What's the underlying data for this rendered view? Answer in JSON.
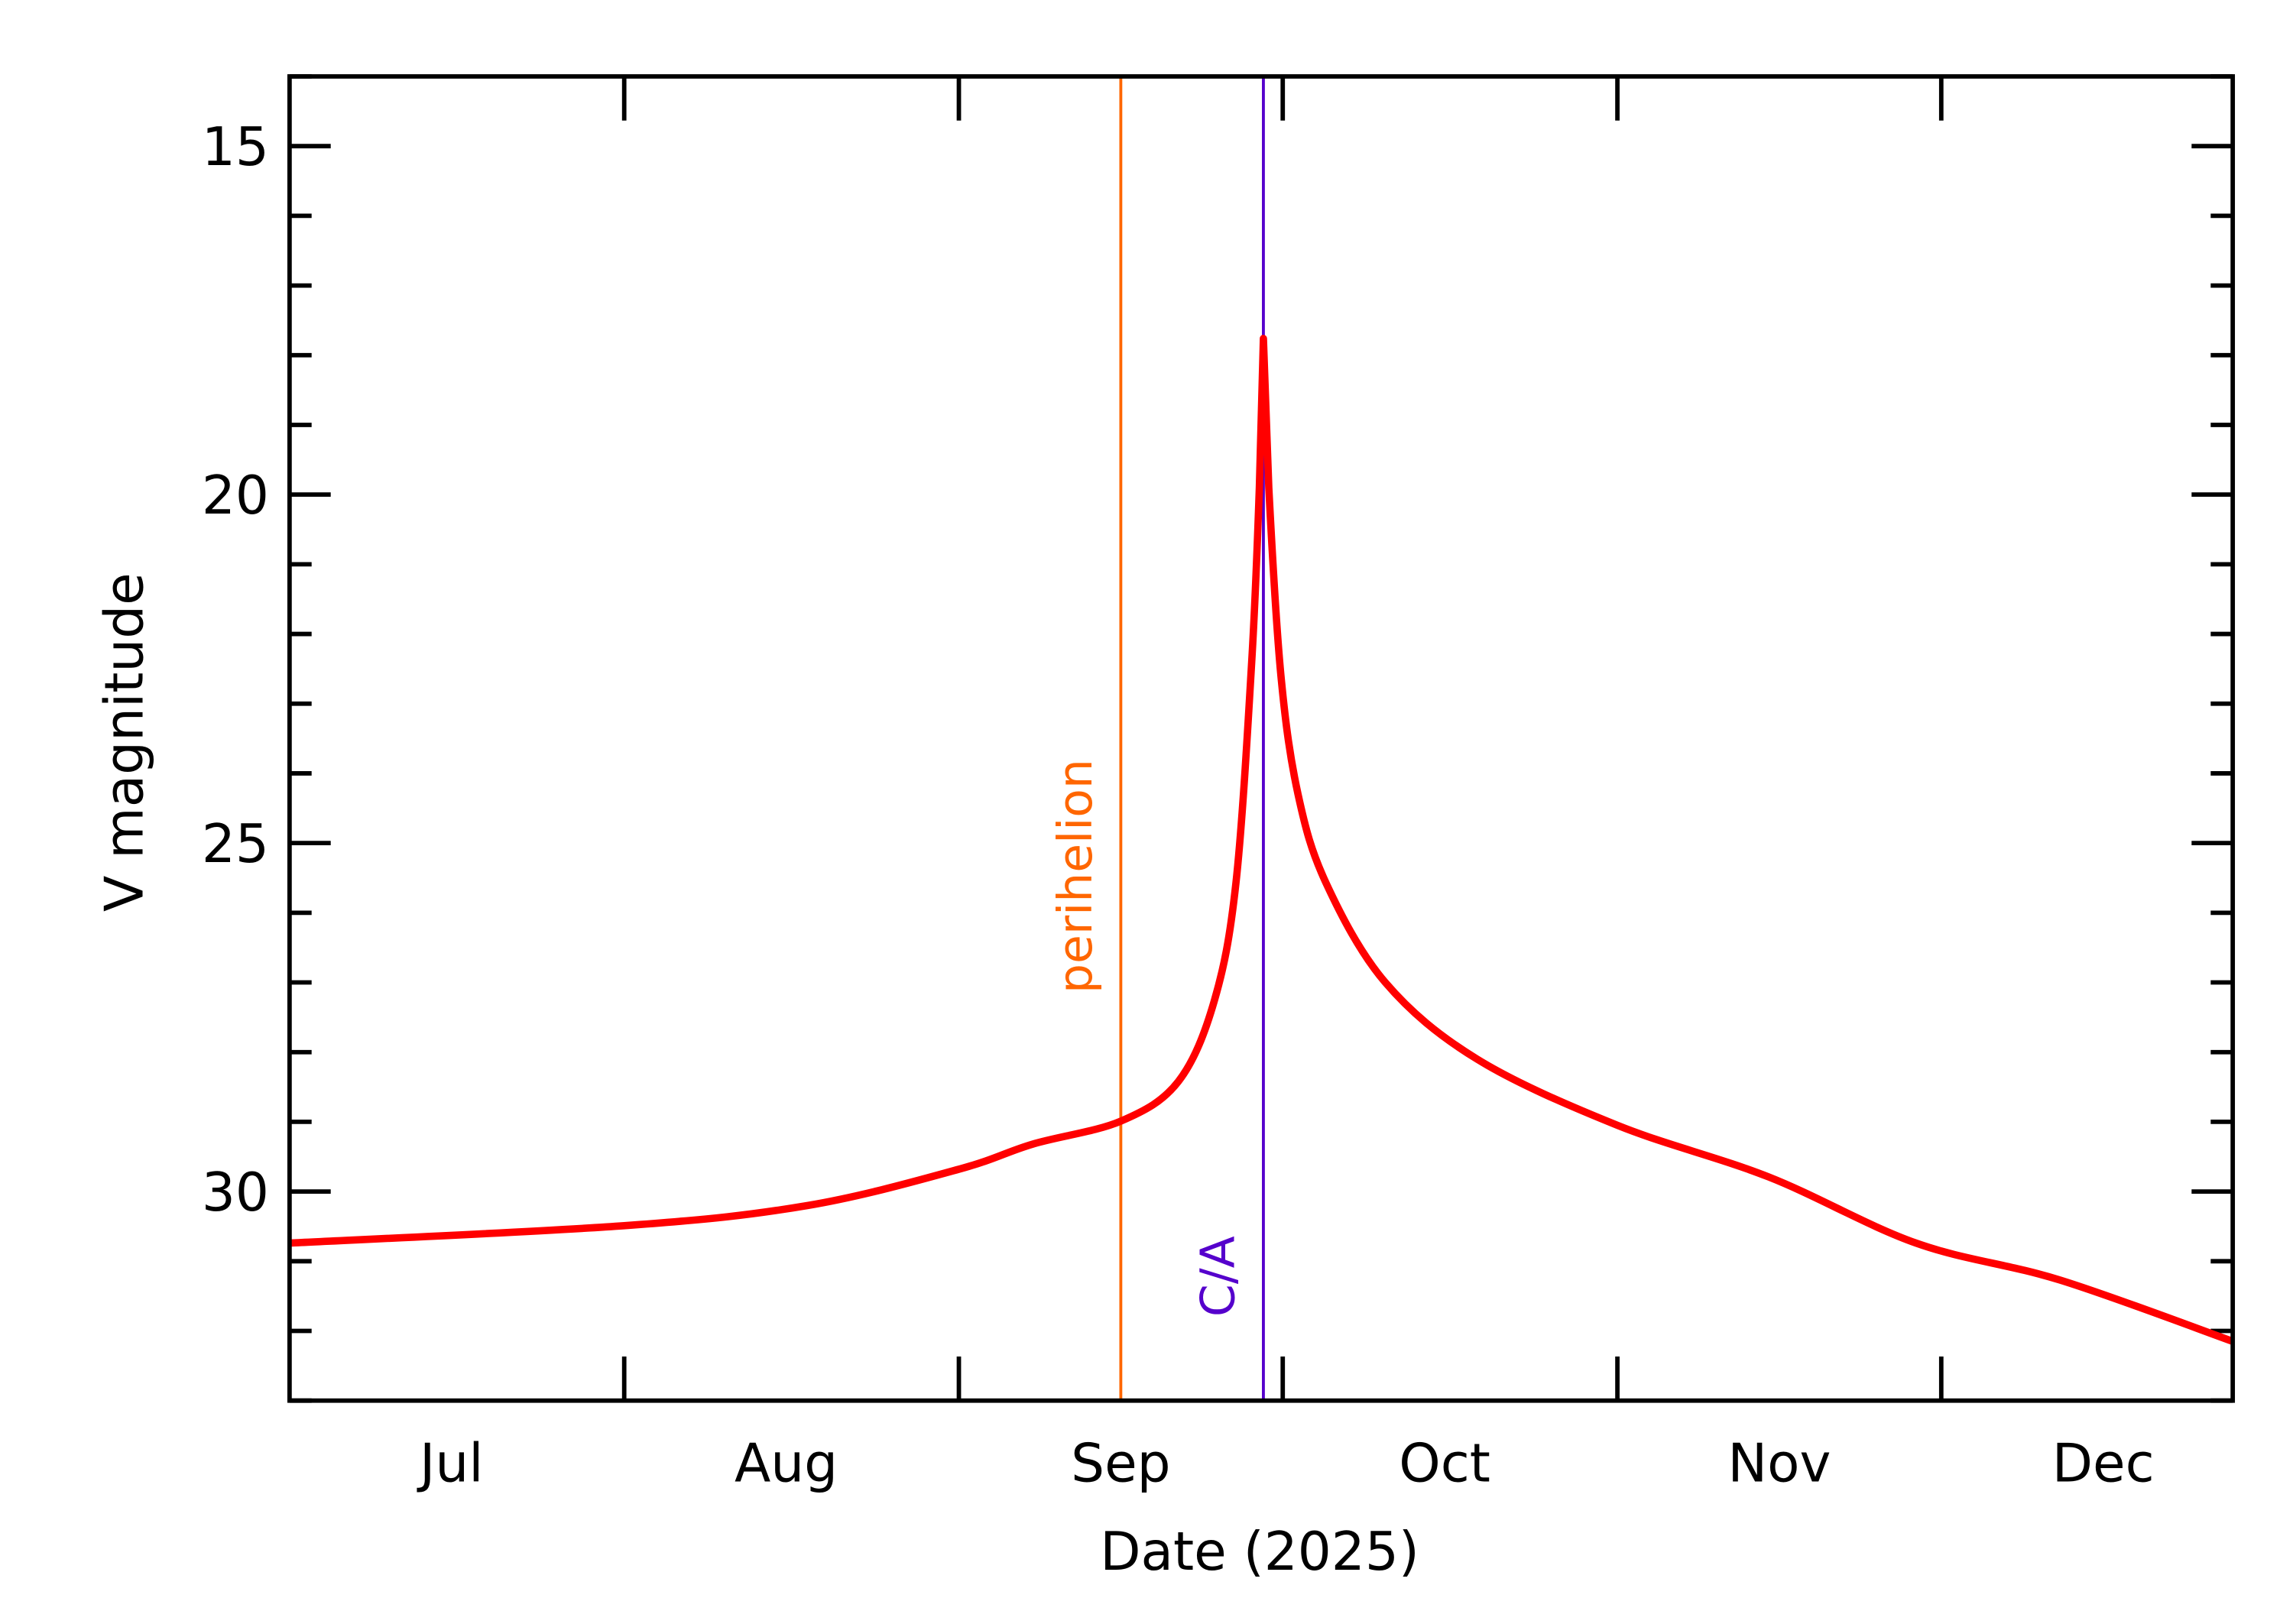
{
  "chart_data": {
    "type": "line",
    "title": "",
    "xlabel": "Date (2025)",
    "ylabel": "V magnitude",
    "xlim": [
      "2025-07-01",
      "2025-12-28"
    ],
    "ylim": [
      33.0,
      14.0
    ],
    "y_inverted": true,
    "grid": false,
    "x_tick_labels": [
      {
        "label": "Jul",
        "date": "2025-07-16"
      },
      {
        "label": "Aug",
        "date": "2025-08-16"
      },
      {
        "label": "Sep",
        "date": "2025-09-16"
      },
      {
        "label": "Oct",
        "date": "2025-10-16"
      },
      {
        "label": "Nov",
        "date": "2025-11-16"
      },
      {
        "label": "Dec",
        "date": "2025-12-16"
      }
    ],
    "x_major_ticks": [
      "2025-08-01",
      "2025-09-01",
      "2025-10-01",
      "2025-11-01",
      "2025-12-01"
    ],
    "y_tick_labels": [
      15,
      20,
      25,
      30
    ],
    "y_minor_step": 1,
    "series": [
      {
        "color": "#ff0000",
        "x": [
          "2025-07-01T00:00",
          "2025-08-01T00:00",
          "2025-08-18T00:00",
          "2025-09-01T00:00",
          "2025-09-07T20:00",
          "2025-09-16T00:00",
          "2025-09-21T08:00",
          "2025-09-24T16:00",
          "2025-09-26T16:00",
          "2025-09-28T03:00",
          "2025-09-28T20:00",
          "2025-09-29T05:00",
          "2025-09-29T17:00",
          "2025-09-30T20:00",
          "2025-10-02T10:00",
          "2025-10-05T00:00",
          "2025-10-10T12:00",
          "2025-10-19T00:00",
          "2025-11-01T00:00",
          "2025-11-15T00:00",
          "2025-11-28T16:00",
          "2025-12-12T00:00",
          "2025-12-28T00:00"
        ],
        "y": [
          30.74,
          30.49,
          30.2,
          29.68,
          29.32,
          28.99,
          28.42,
          27.26,
          25.57,
          22.4,
          19.9,
          17.76,
          19.9,
          22.6,
          24.3,
          25.57,
          27.0,
          28.1,
          29.05,
          29.79,
          30.74,
          31.27,
          32.15
        ]
      }
    ],
    "annotations": [
      {
        "label": "perihelion",
        "date": "2025-09-16",
        "color": "#ff6600"
      },
      {
        "label": "C/A",
        "date": "2025-09-29T05:00",
        "color": "#5500cc"
      }
    ]
  }
}
